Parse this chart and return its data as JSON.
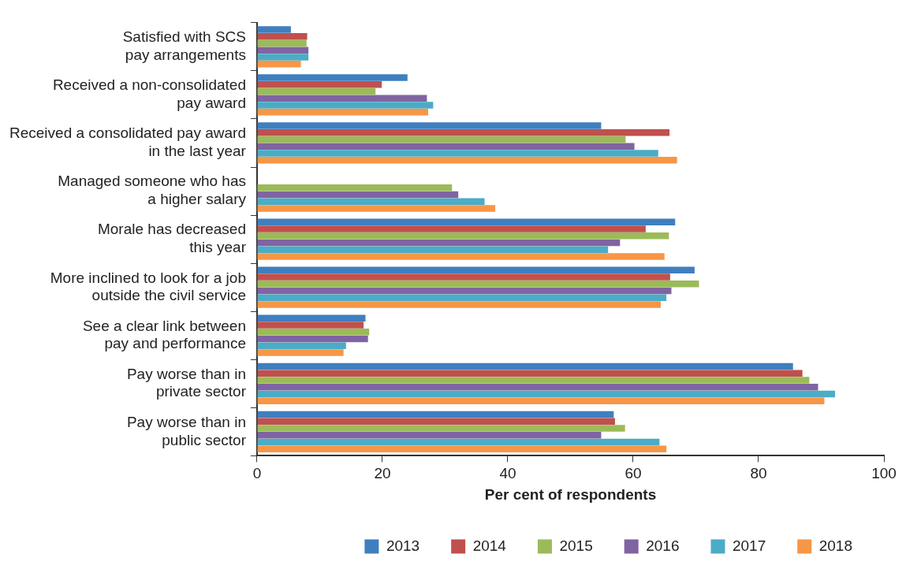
{
  "chart_data": {
    "type": "bar",
    "orientation": "horizontal",
    "xlabel": "Per cent of respondents",
    "categories": [
      "Satisfied with SCS\npay arrangements",
      "Received a non-consolidated\npay award",
      "Received a consolidated pay award\nin the last year",
      "Managed someone who has\na higher salary",
      "Morale has decreased\nthis year",
      "More inclined to look for a job\noutside the civil service",
      "See a clear link between\npay and performance",
      "Pay worse than in\nprivate sector",
      "Pay worse than in\npublic sector"
    ],
    "series": [
      {
        "name": "2013",
        "color": "#3f7fbf",
        "values": [
          5.4,
          24.0,
          54.9,
          null,
          66.7,
          69.8,
          17.3,
          85.5,
          56.9
        ]
      },
      {
        "name": "2014",
        "color": "#c0504d",
        "values": [
          8.0,
          19.9,
          65.8,
          null,
          62.0,
          65.9,
          17.0,
          87.0,
          57.1
        ]
      },
      {
        "name": "2015",
        "color": "#9bbb59",
        "values": [
          7.9,
          18.9,
          58.8,
          31.1,
          65.7,
          70.5,
          17.9,
          88.1,
          58.7
        ]
      },
      {
        "name": "2016",
        "color": "#8064a2",
        "values": [
          8.2,
          27.1,
          60.2,
          32.1,
          57.9,
          66.1,
          17.7,
          89.5,
          54.9
        ]
      },
      {
        "name": "2017",
        "color": "#4bacc6",
        "values": [
          8.2,
          28.1,
          64.0,
          36.3,
          56.0,
          65.3,
          14.2,
          92.2,
          64.2
        ]
      },
      {
        "name": "2018",
        "color": "#f79646",
        "values": [
          7.0,
          27.3,
          67.0,
          38.0,
          65.0,
          64.4,
          13.8,
          90.5,
          65.3
        ]
      }
    ],
    "xlim": [
      0,
      100
    ],
    "xticks": [
      0,
      20,
      40,
      60,
      80,
      100
    ],
    "grid": false,
    "legend": "bottom"
  }
}
